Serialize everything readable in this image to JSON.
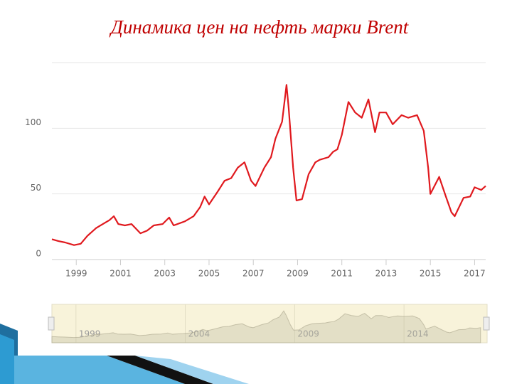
{
  "chart_data": {
    "type": "line",
    "title": "Динамика цен на нефть марки Brent",
    "x": [
      1997.9,
      1998.2,
      1998.5,
      1998.9,
      1999.2,
      1999.5,
      1999.9,
      2000.2,
      2000.5,
      2000.7,
      2000.9,
      2001.2,
      2001.5,
      2001.9,
      2002.2,
      2002.5,
      2002.9,
      2003.2,
      2003.4,
      2003.9,
      2004.3,
      2004.6,
      2004.8,
      2005.0,
      2005.4,
      2005.7,
      2006.0,
      2006.3,
      2006.6,
      2006.9,
      2007.1,
      2007.5,
      2007.8,
      2008.0,
      2008.3,
      2008.5,
      2008.6,
      2008.8,
      2008.95,
      2009.2,
      2009.5,
      2009.8,
      2010.0,
      2010.4,
      2010.6,
      2010.8,
      2011.0,
      2011.3,
      2011.6,
      2011.9,
      2012.2,
      2012.5,
      2012.7,
      2013.0,
      2013.3,
      2013.7,
      2014.0,
      2014.4,
      2014.7,
      2014.9,
      2015.0,
      2015.4,
      2015.7,
      2015.95,
      2016.1,
      2016.5,
      2016.8,
      2017.0,
      2017.3,
      2017.5
    ],
    "series": [
      {
        "name": "Brent",
        "color": "#e0191e",
        "values": [
          15.5,
          14,
          13,
          11,
          12,
          18,
          24,
          27,
          30,
          33,
          27,
          26,
          27,
          20,
          22,
          26,
          27,
          32,
          26,
          29,
          33,
          40,
          48,
          42,
          52,
          60,
          62,
          70,
          74,
          60,
          56,
          70,
          78,
          92,
          105,
          133,
          115,
          70,
          45,
          46,
          65,
          74,
          76,
          78,
          82,
          84,
          95,
          120,
          112,
          108,
          122,
          97,
          112,
          112,
          103,
          110,
          108,
          110,
          98,
          70,
          50,
          63,
          48,
          36,
          33,
          47,
          48,
          55,
          53,
          56
        ]
      }
    ],
    "xlim": [
      1997.9,
      2017.5
    ],
    "xticks": [
      1999,
      2001,
      2003,
      2005,
      2007,
      2009,
      2011,
      2013,
      2015,
      2017
    ],
    "ylim": [
      0,
      150
    ],
    "yticks": [
      0,
      50,
      100
    ],
    "grid": true,
    "navigator": {
      "xlim": [
        1997.9,
        2017.8
      ],
      "xticks": [
        1999,
        2004,
        2009,
        2014
      ]
    }
  }
}
